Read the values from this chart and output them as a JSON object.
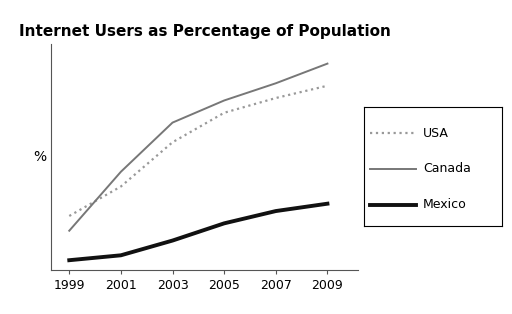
{
  "title": "Internet Users as Percentage of Population",
  "ylabel": "%",
  "years": [
    1999,
    2001,
    2003,
    2005,
    2007,
    2009
  ],
  "usa": [
    20,
    32,
    50,
    62,
    68,
    73
  ],
  "canada": [
    14,
    38,
    58,
    67,
    74,
    82
  ],
  "mexico": [
    2,
    4,
    10,
    17,
    22,
    25
  ],
  "xlim": [
    1998.3,
    2010.2
  ],
  "ylim": [
    -2,
    90
  ],
  "xticks": [
    1999,
    2001,
    2003,
    2005,
    2007,
    2009
  ],
  "usa_color": "#999999",
  "canada_color": "#777777",
  "mexico_color": "#111111",
  "background_color": "#ffffff",
  "legend_labels": [
    "USA",
    "Canada",
    "Mexico"
  ],
  "title_fontsize": 11,
  "tick_fontsize": 9,
  "ylabel_fontsize": 10
}
